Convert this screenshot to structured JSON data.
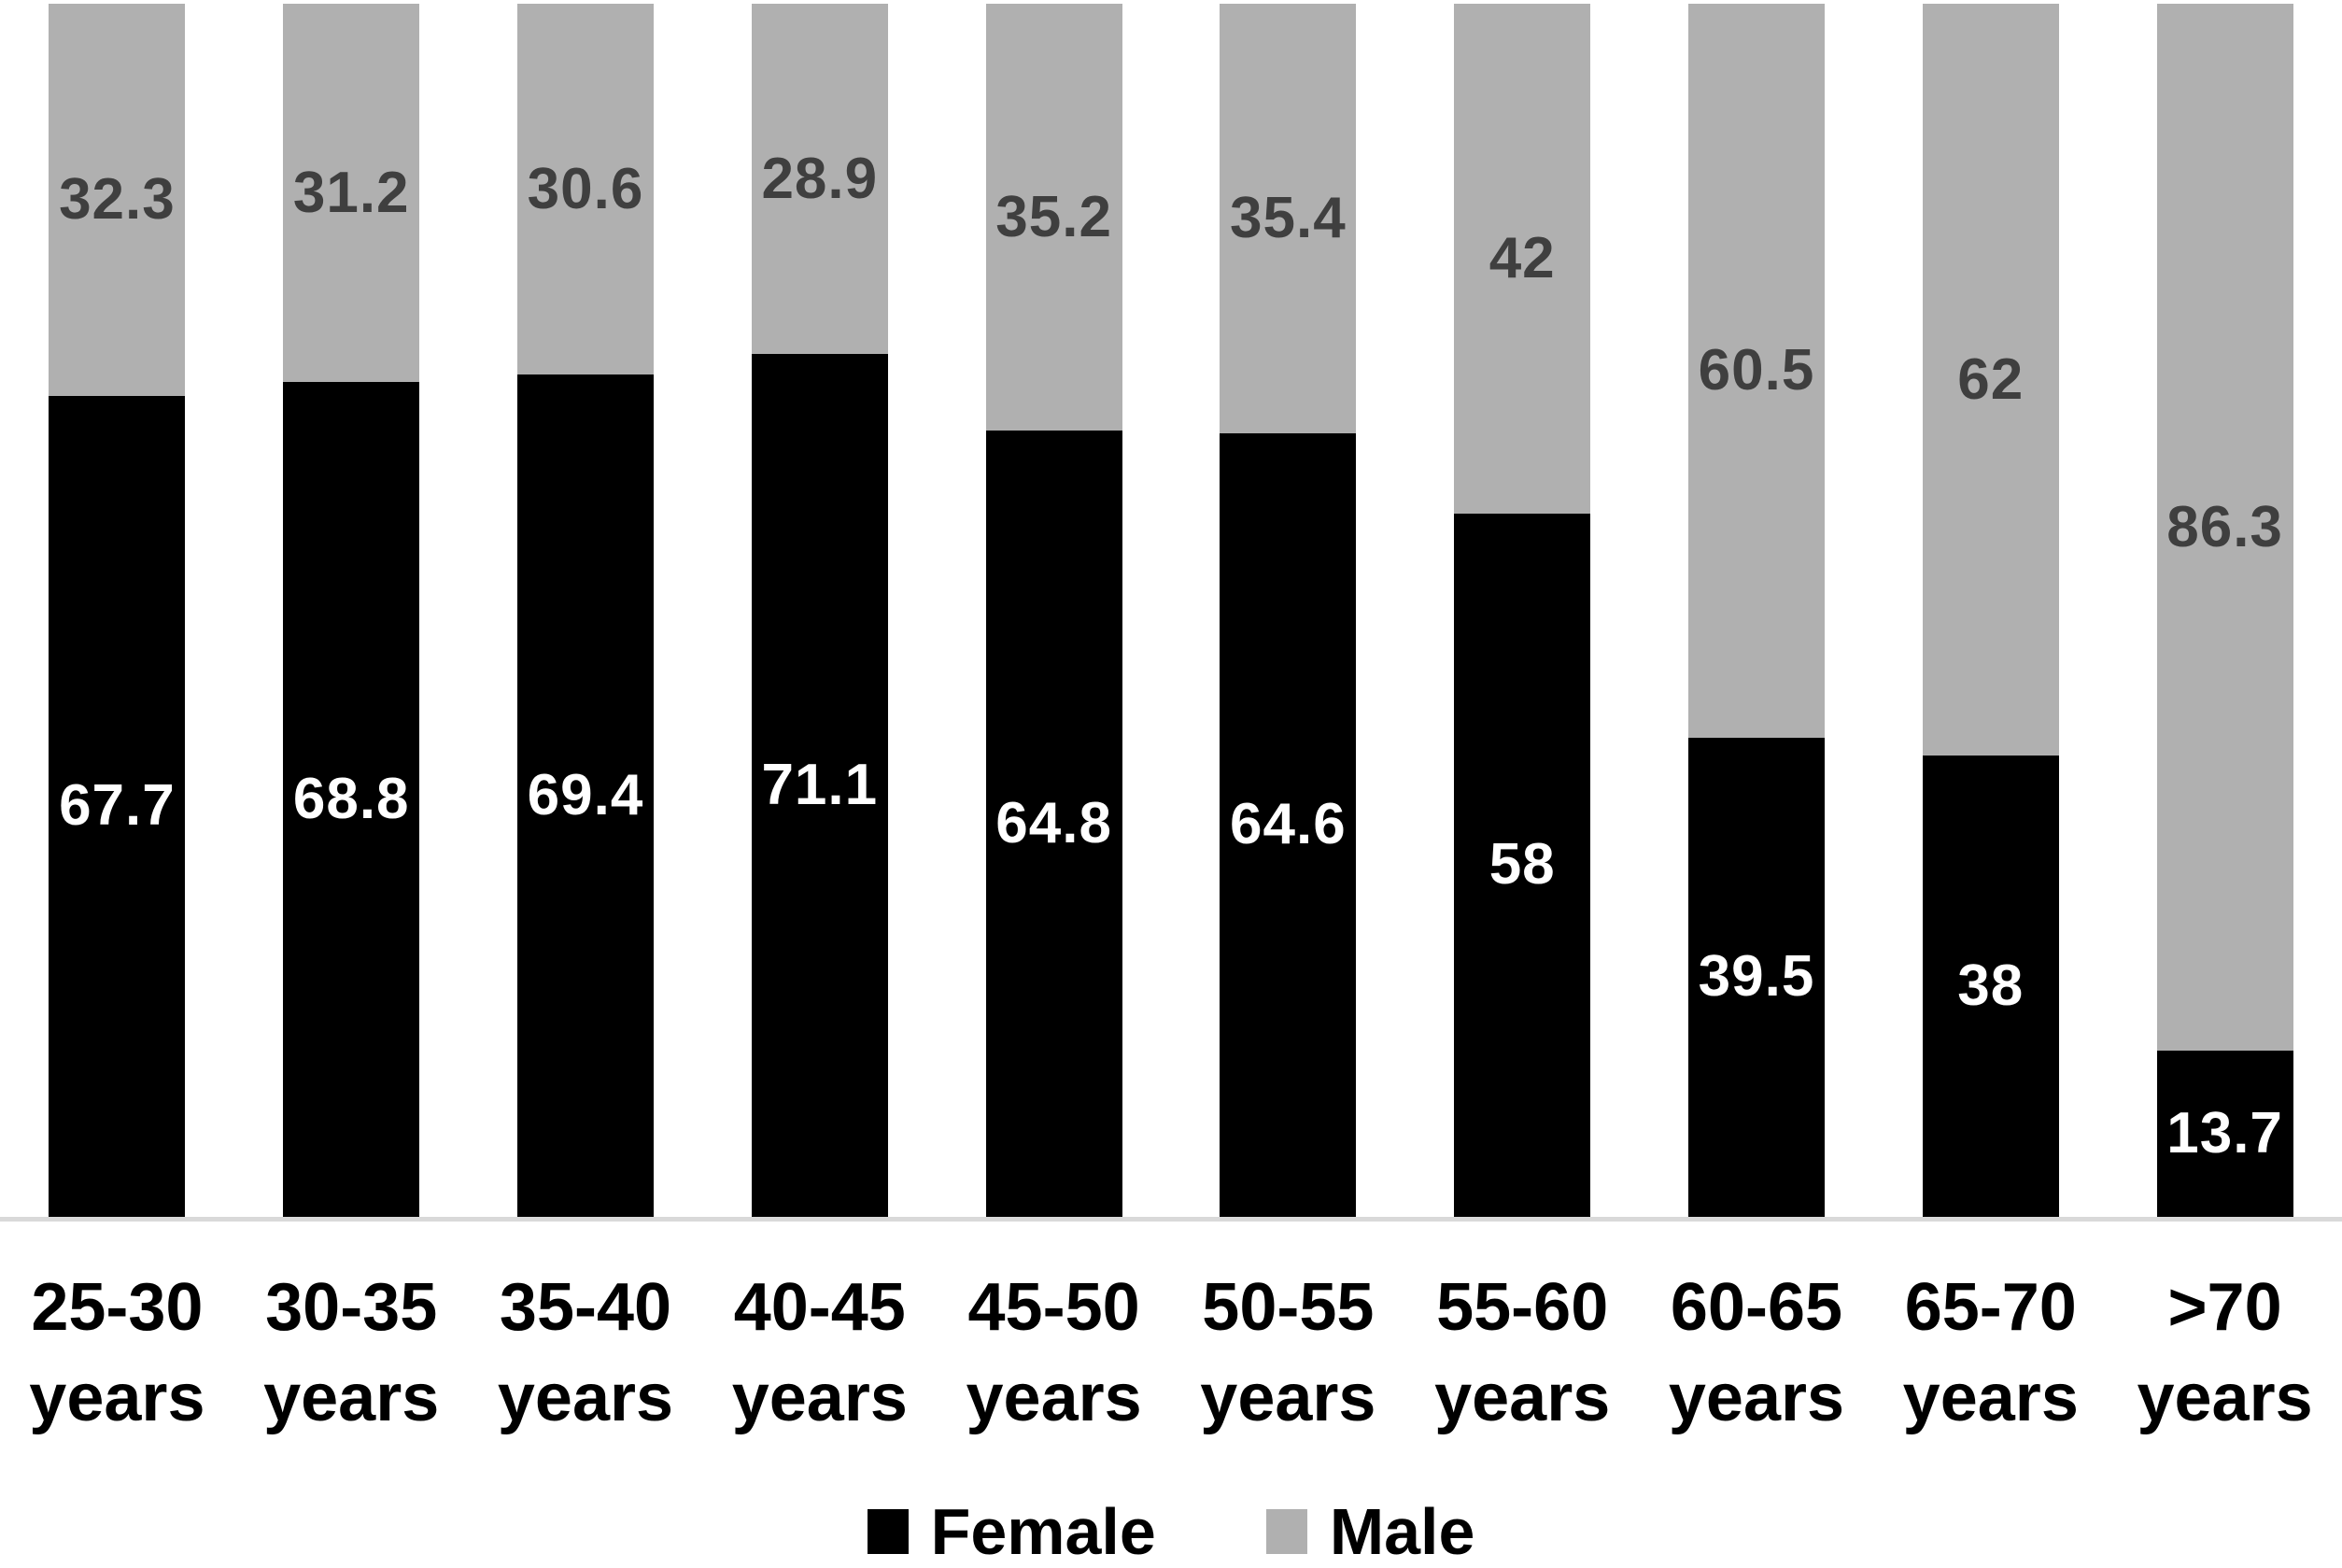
{
  "chart_data": {
    "type": "bar",
    "variant": "stacked-100-percent",
    "orientation": "vertical",
    "title": "",
    "xlabel": "",
    "ylabel": "",
    "ylim": [
      0,
      100
    ],
    "grid": false,
    "legend_position": "bottom",
    "axis_line_color": "#d9d9d9",
    "background_color": "#ffffff",
    "categories": [
      "25-30 years",
      "30-35 years",
      "35-40 years",
      "40-45 years",
      "45-50 years",
      "50-55 years",
      "55-60 years",
      "60-65 years",
      "65-70 years",
      ">70 years"
    ],
    "category_label_lines": [
      [
        "25-30",
        "years"
      ],
      [
        "30-35",
        "years"
      ],
      [
        "35-40",
        "years"
      ],
      [
        "40-45",
        "years"
      ],
      [
        "45-50",
        "years"
      ],
      [
        "50-55",
        "years"
      ],
      [
        "55-60",
        "years"
      ],
      [
        "60-65",
        "years"
      ],
      [
        "65-70",
        "years"
      ],
      [
        ">70",
        "years"
      ]
    ],
    "series": [
      {
        "name": "Female",
        "color": "#000000",
        "label_color": "#ffffff",
        "values": [
          67.7,
          68.8,
          69.4,
          71.1,
          64.8,
          64.6,
          58,
          39.5,
          38,
          13.7
        ],
        "labels": [
          "67.7",
          "68.8",
          "69.4",
          "71.1",
          "64.8",
          "64.6",
          "58",
          "39.5",
          "38",
          "13.7"
        ]
      },
      {
        "name": "Male",
        "color": "#b0b0b0",
        "label_color": "#3f3f3f",
        "values": [
          32.3,
          31.2,
          30.6,
          28.9,
          35.2,
          35.4,
          42,
          60.5,
          62,
          86.3
        ],
        "labels": [
          "32.3",
          "31.2",
          "30.6",
          "28.9",
          "35.2",
          "35.4",
          "42",
          "60.5",
          "62",
          "86.3"
        ]
      }
    ]
  },
  "legend": {
    "items": [
      {
        "label": "Female",
        "color": "#000000"
      },
      {
        "label": "Male",
        "color": "#b0b0b0"
      }
    ]
  }
}
